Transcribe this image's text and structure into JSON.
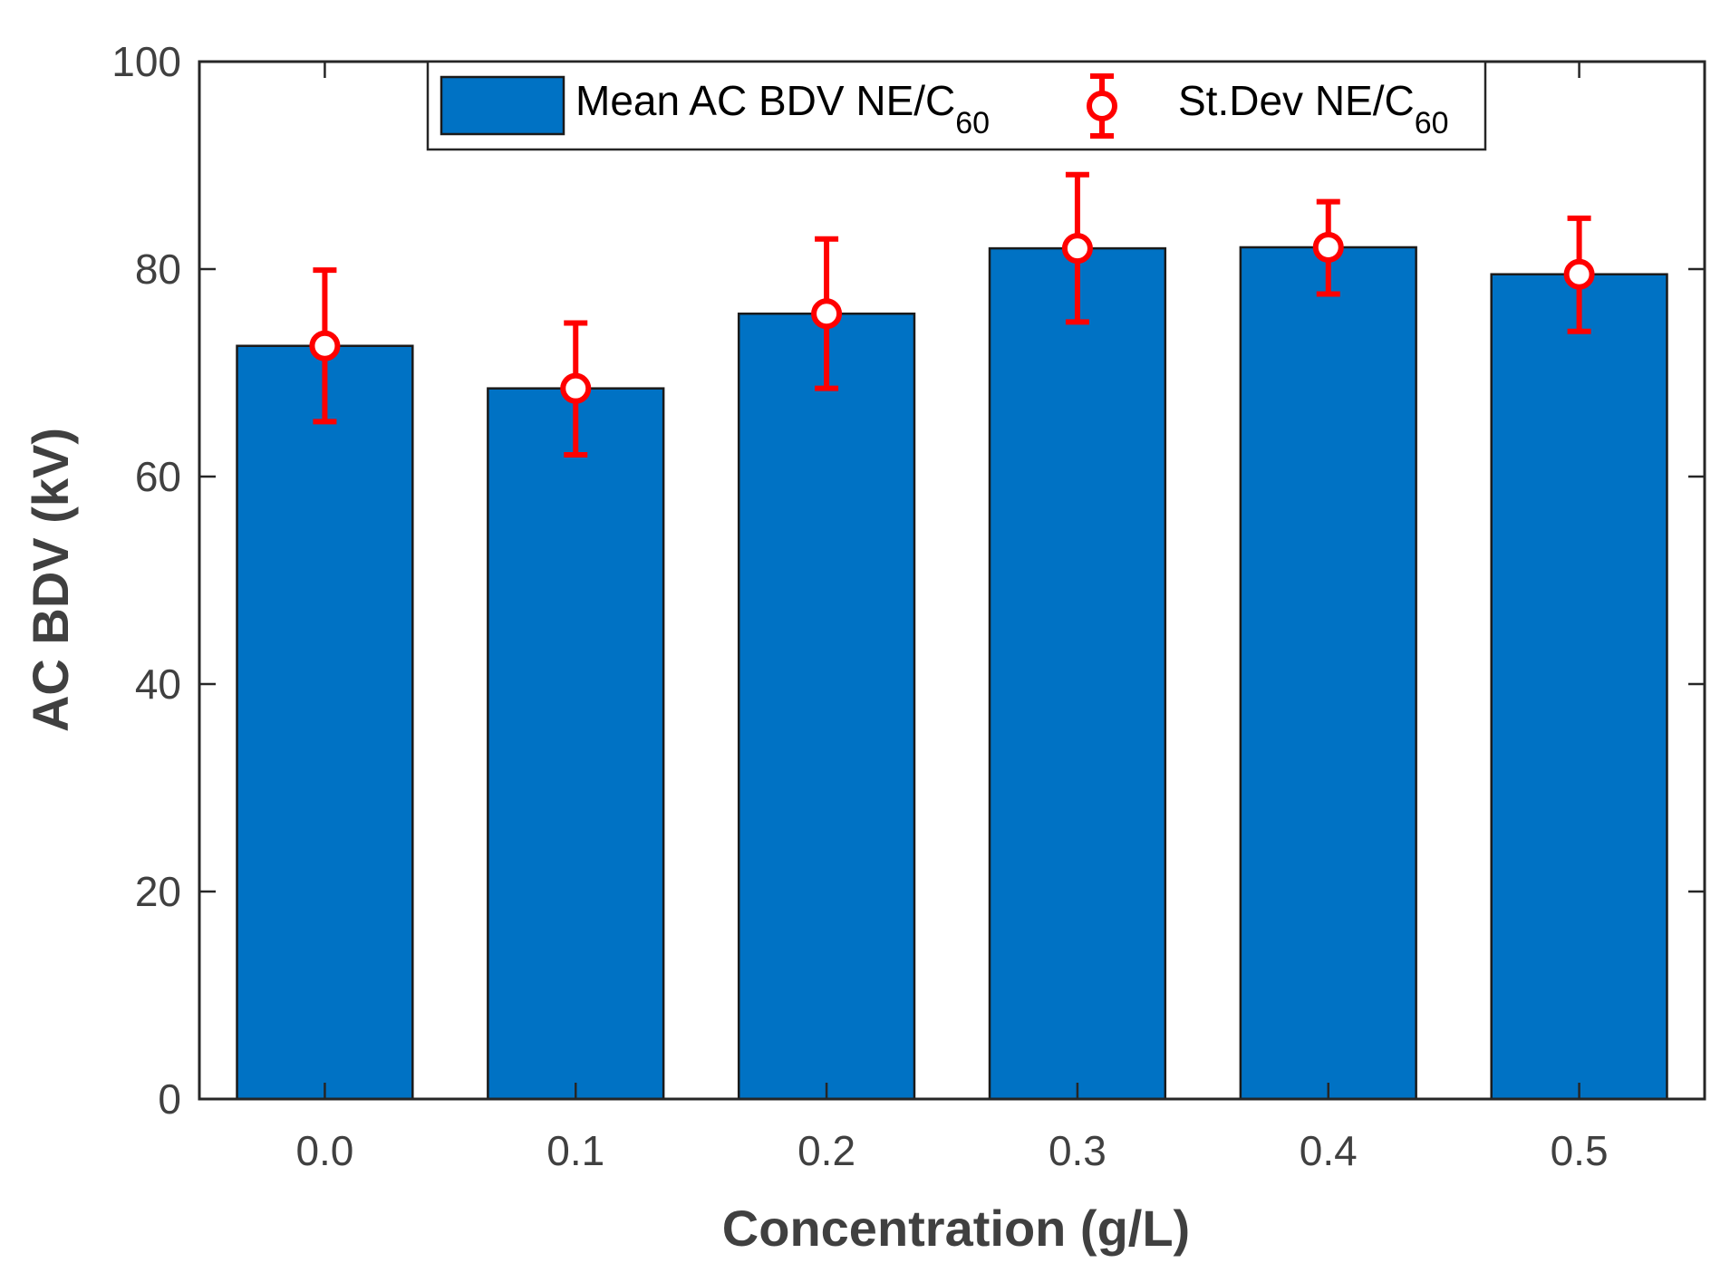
{
  "chart_data": {
    "type": "bar",
    "title": "",
    "xlabel": "Concentration (g/L)",
    "ylabel": "AC BDV (kV)",
    "categories": [
      "0.0",
      "0.1",
      "0.2",
      "0.3",
      "0.4",
      "0.5"
    ],
    "series": [
      {
        "name": "Mean AC BDV NE/C60",
        "values": [
          72.6,
          68.5,
          75.7,
          82.0,
          82.1,
          79.5
        ]
      }
    ],
    "error_bars": {
      "name": "St.Dev NE/C60",
      "center": [
        72.6,
        68.5,
        75.7,
        82.0,
        82.1,
        79.5
      ],
      "lower": [
        65.3,
        62.1,
        68.5,
        74.9,
        77.6,
        74.0
      ],
      "upper": [
        79.9,
        74.8,
        82.9,
        89.1,
        86.5,
        84.9
      ]
    },
    "ylim": [
      0,
      100
    ],
    "yticks": [
      "0",
      "20",
      "40",
      "60",
      "80",
      "100"
    ],
    "grid": false,
    "legend_position": "top",
    "colors": {
      "bar": "#0072c4",
      "bar_edge": "#1a1a1a",
      "error": "#ff0000",
      "axis": "#262626",
      "text": "#404040"
    },
    "legend": {
      "bar_label_main": "Mean AC BDV NE/C",
      "bar_label_sub": "60",
      "err_label_main": "St.Dev NE/C",
      "err_label_sub": "60"
    }
  }
}
